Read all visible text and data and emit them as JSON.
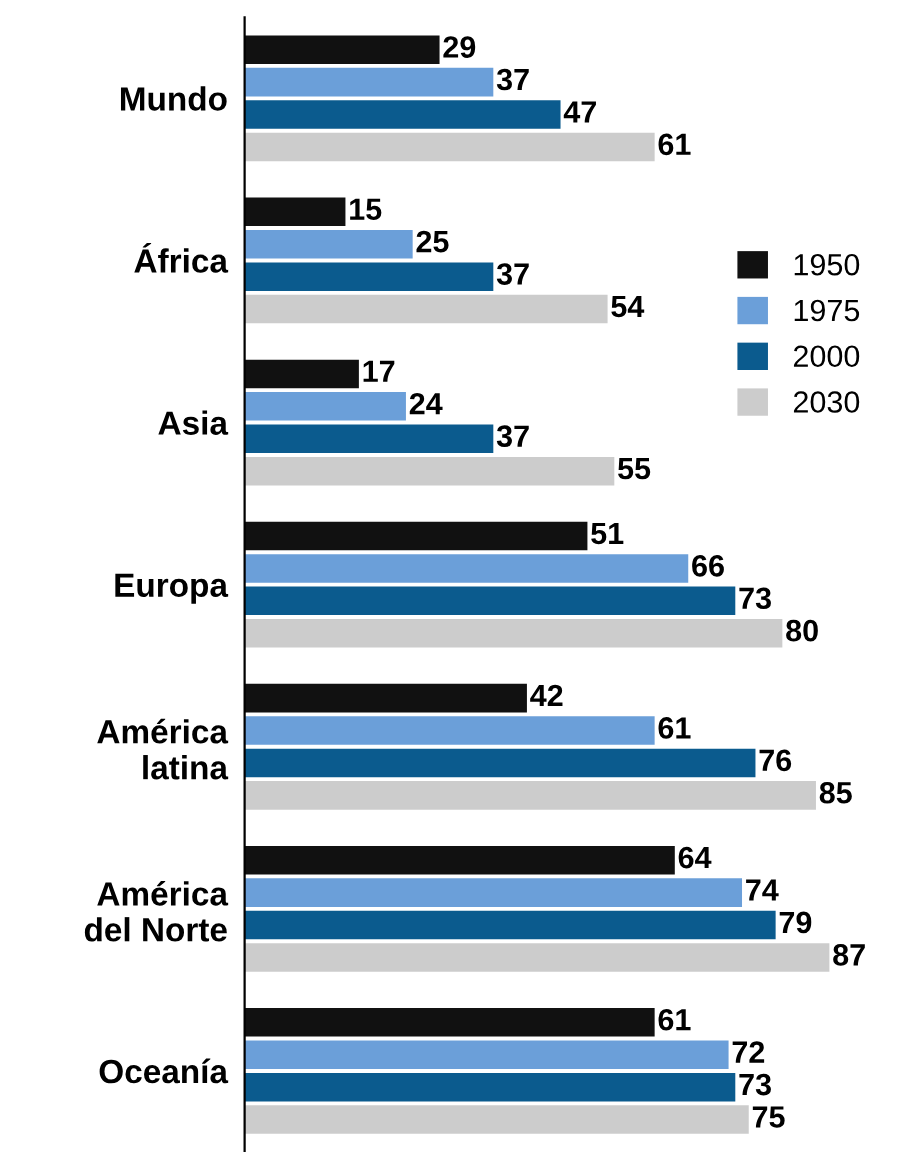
{
  "chart_data": {
    "type": "bar",
    "orientation": "horizontal",
    "data_labels": true,
    "legend": "right",
    "grid": false,
    "categories": [
      "Mundo",
      "África",
      "Asia",
      "Europa",
      "América\nlatina",
      "América\ndel Norte",
      "Oceanía"
    ],
    "series": [
      {
        "name": "1950",
        "color": "#111111",
        "values": [
          29,
          15,
          17,
          51,
          42,
          64,
          61
        ]
      },
      {
        "name": "1975",
        "color": "#6b9fd9",
        "values": [
          37,
          25,
          24,
          66,
          61,
          74,
          72
        ]
      },
      {
        "name": "2000",
        "color": "#0b5b8e",
        "values": [
          47,
          37,
          37,
          73,
          76,
          79,
          73
        ]
      },
      {
        "name": "2030",
        "color": "#cccccc",
        "values": [
          61,
          54,
          55,
          80,
          85,
          87,
          75
        ]
      }
    ]
  }
}
